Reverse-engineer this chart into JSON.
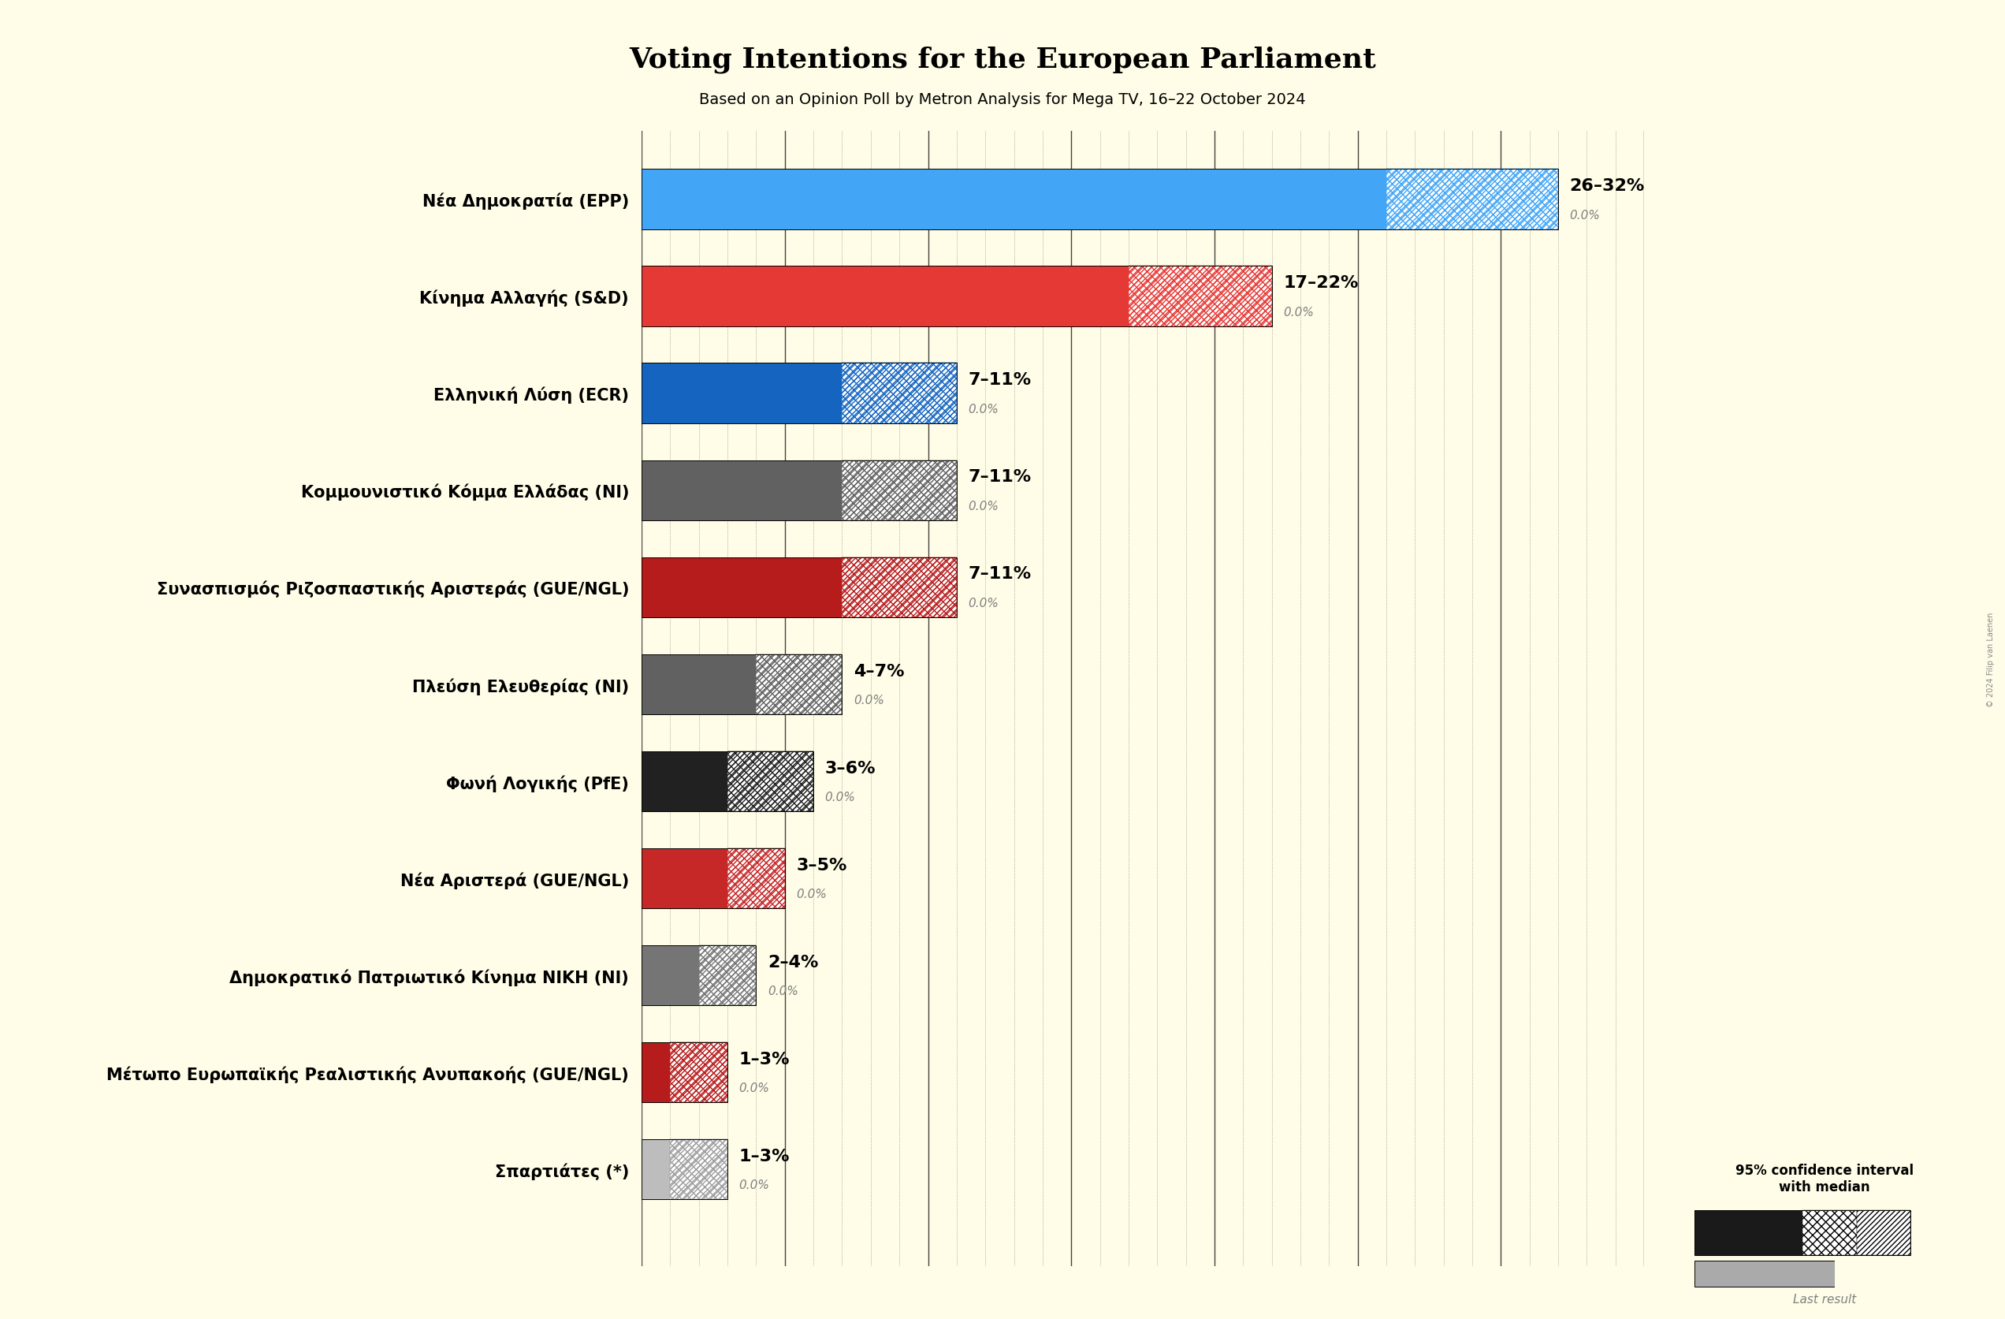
{
  "title": "Voting Intentions for the European Parliament",
  "subtitle": "Based on an Opinion Poll by Metron Analysis for Mega TV, 16–22 October 2024",
  "background_color": "#FFFDE7",
  "parties": [
    {
      "name": "Νέα Δημοκρατία (EPP)",
      "low": 26,
      "high": 32,
      "median": 29,
      "color": "#42A5F5",
      "hatch_color": "#42A5F5",
      "label": "26–32%",
      "last": "0.0%"
    },
    {
      "name": "Κίνημα Αλλαγής (S&D)",
      "low": 17,
      "high": 22,
      "median": 19.5,
      "color": "#E53935",
      "hatch_color": "#E53935",
      "label": "17–22%",
      "last": "0.0%"
    },
    {
      "name": "Ελληνική Λύση (ECR)",
      "low": 7,
      "high": 11,
      "median": 9,
      "color": "#1565C0",
      "hatch_color": "#1565C0",
      "label": "7–11%",
      "last": "0.0%"
    },
    {
      "name": "Κομμουνιστικό Κόμμα Ελλάδας (NI)",
      "low": 7,
      "high": 11,
      "median": 9,
      "color": "#616161",
      "hatch_color": "#616161",
      "label": "7–11%",
      "last": "0.0%"
    },
    {
      "name": "Συνασπισμός Ριζοσπαστικής Αριστεράς (GUE/NGL)",
      "low": 7,
      "high": 11,
      "median": 9,
      "color": "#B71C1C",
      "hatch_color": "#B71C1C",
      "label": "7–11%",
      "last": "0.0%"
    },
    {
      "name": "Πλεύση Ελευθερίας (NI)",
      "low": 4,
      "high": 7,
      "median": 5.5,
      "color": "#616161",
      "hatch_color": "#616161",
      "label": "4–7%",
      "last": "0.0%"
    },
    {
      "name": "Φωνή Λογικής (PfE)",
      "low": 3,
      "high": 6,
      "median": 4.5,
      "color": "#212121",
      "hatch_color": "#212121",
      "label": "3–6%",
      "last": "0.0%"
    },
    {
      "name": "Νέα Αριστερά (GUE/NGL)",
      "low": 3,
      "high": 5,
      "median": 4,
      "color": "#C62828",
      "hatch_color": "#C62828",
      "label": "3–5%",
      "last": "0.0%"
    },
    {
      "name": "Δημοκρατικό Πατριωτικό Κίνημα ΝΙΚΗ (NI)",
      "low": 2,
      "high": 4,
      "median": 3,
      "color": "#757575",
      "hatch_color": "#757575",
      "label": "2–4%",
      "last": "0.0%"
    },
    {
      "name": "Μέτωπο Ευρωπαϊκής Ρεαλιστικής Ανυπακοής (GUE/NGL)",
      "low": 1,
      "high": 3,
      "median": 2,
      "color": "#B71C1C",
      "hatch_color": "#B71C1C",
      "label": "1–3%",
      "last": "0.0%"
    },
    {
      "name": "Σπαρτιάτες (*)",
      "low": 1,
      "high": 3,
      "median": 2,
      "color": "#BDBDBD",
      "hatch_color": "#9E9E9E",
      "label": "1–3%",
      "last": "0.0%"
    }
  ],
  "xlim_max": 35,
  "title_fontsize": 26,
  "subtitle_fontsize": 14,
  "party_label_fontsize": 15,
  "range_label_fontsize": 16,
  "last_label_fontsize": 11,
  "bar_height": 0.62,
  "copyright": "© 2024 Filip van Laenen"
}
